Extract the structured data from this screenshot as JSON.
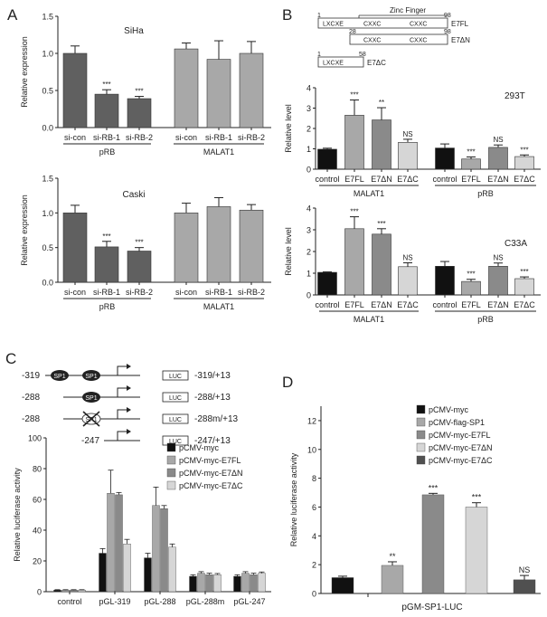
{
  "figure": {
    "colors": {
      "dark": "#606060",
      "light": "#a8a8a8",
      "black": "#111111",
      "mid": "#8a8a8a",
      "lightest": "#d6d6d6",
      "panelD_dark": "#505050"
    }
  },
  "chart_data": [
    {
      "panel": "A",
      "title": "SiHa",
      "type": "bar",
      "ylabel": "Relative expression",
      "ylim": [
        0,
        1.5
      ],
      "yticks": [
        "0.0",
        "0.5",
        "1.0",
        "1.5"
      ],
      "categories": [
        "si-con",
        "si-RB-1",
        "si-RB-2",
        "si-con",
        "si-RB-1",
        "si-RB-2"
      ],
      "values": [
        1.0,
        0.45,
        0.39,
        1.06,
        0.92,
        1.0
      ],
      "errors": [
        0.1,
        0.06,
        0.03,
        0.08,
        0.25,
        0.16
      ],
      "sig": [
        "",
        "***",
        "***",
        "",
        "",
        ""
      ],
      "groups": [
        "pRB",
        "MALAT1"
      ]
    },
    {
      "panel": "A",
      "title": "Caski",
      "type": "bar",
      "ylabel": "Relative expression",
      "ylim": [
        0,
        1.5
      ],
      "yticks": [
        "0.0",
        "0.5",
        "1.0",
        "1.5"
      ],
      "categories": [
        "si-con",
        "si-RB-1",
        "si-RB-2",
        "si-con",
        "si-RB-1",
        "si-RB-2"
      ],
      "values": [
        1.0,
        0.51,
        0.45,
        1.0,
        1.09,
        1.04
      ],
      "errors": [
        0.11,
        0.08,
        0.05,
        0.14,
        0.13,
        0.08
      ],
      "sig": [
        "",
        "***",
        "***",
        "",
        "",
        ""
      ],
      "groups": [
        "pRB",
        "MALAT1"
      ]
    },
    {
      "panel": "B",
      "title": "293T",
      "type": "bar",
      "ylabel": "Relative level",
      "ylim": [
        0,
        4
      ],
      "yticks": [
        "0",
        "1",
        "2",
        "3",
        "4"
      ],
      "categories": [
        "control",
        "E7FL",
        "E7ΔN",
        "E7ΔC",
        "control",
        "E7FL",
        "E7ΔN",
        "E7ΔC"
      ],
      "values": [
        0.98,
        2.65,
        2.42,
        1.32,
        1.04,
        0.5,
        1.07,
        0.62
      ],
      "errors": [
        0.05,
        0.75,
        0.6,
        0.15,
        0.2,
        0.1,
        0.12,
        0.08
      ],
      "sig": [
        "",
        "***",
        "**",
        "NS",
        "",
        "***",
        "NS",
        "***"
      ],
      "groups": [
        "MALAT1",
        "pRB"
      ]
    },
    {
      "panel": "B",
      "title": "C33A",
      "type": "bar",
      "ylabel": "Relative level",
      "ylim": [
        0,
        4
      ],
      "yticks": [
        "0",
        "1",
        "2",
        "3",
        "4"
      ],
      "categories": [
        "control",
        "E7FL",
        "E7ΔN",
        "E7ΔC",
        "control",
        "E7FL",
        "E7ΔN",
        "E7ΔC"
      ],
      "values": [
        1.04,
        3.05,
        2.8,
        1.3,
        1.32,
        0.62,
        1.32,
        0.75
      ],
      "errors": [
        0.02,
        0.55,
        0.25,
        0.18,
        0.22,
        0.1,
        0.15,
        0.08
      ],
      "sig": [
        "",
        "***",
        "***",
        "NS",
        "",
        "***",
        "NS",
        "***"
      ],
      "groups": [
        "MALAT1",
        "pRB"
      ]
    },
    {
      "panel": "C",
      "type": "bar",
      "ylabel": "Relative luciferase activity",
      "ylim": [
        0,
        100
      ],
      "yticks": [
        "0",
        "20",
        "40",
        "60",
        "80",
        "100"
      ],
      "categories": [
        "control",
        "pGL-319",
        "pGL-288",
        "pGL-288m",
        "pGL-247"
      ],
      "series": [
        {
          "name": "pCMV-myc",
          "values": [
            1,
            25,
            22,
            10,
            10
          ],
          "errors": [
            0.3,
            3,
            3,
            1,
            1
          ]
        },
        {
          "name": "pCMV-myc-E7FL",
          "values": [
            1,
            64,
            56,
            12,
            12
          ],
          "errors": [
            0.3,
            15,
            12,
            1,
            1
          ]
        },
        {
          "name": "pCMV-myc-E7ΔN",
          "values": [
            1,
            63,
            54,
            11,
            11
          ],
          "errors": [
            0.3,
            1.5,
            2,
            1,
            1
          ]
        },
        {
          "name": "pCMV-myc-E7ΔC",
          "values": [
            1,
            31,
            29,
            11,
            12
          ],
          "errors": [
            0.3,
            3,
            2,
            0.8,
            0.8
          ]
        }
      ]
    },
    {
      "panel": "D",
      "type": "bar",
      "ylabel": "Relative luciferase activity",
      "ylim": [
        0,
        13
      ],
      "yticks": [
        "0",
        "2",
        "4",
        "6",
        "8",
        "10",
        "12"
      ],
      "xlabel": "pGM-SP1-LUC",
      "series": [
        {
          "name": "pCMV-myc",
          "value": 1.1,
          "error": 0.1,
          "sig": ""
        },
        {
          "name": "pCMV-flag-SP1",
          "value": 1.95,
          "error": 0.25,
          "sig": "**"
        },
        {
          "name": "pCMV-myc-E7FL",
          "value": 6.85,
          "error": 0.1,
          "sig": "***"
        },
        {
          "name": "pCMV-myc-E7ΔN",
          "value": 6.0,
          "error": 0.3,
          "sig": "***"
        },
        {
          "name": "pCMV-myc-E7ΔC",
          "value": 0.95,
          "error": 0.3,
          "sig": "NS"
        }
      ]
    }
  ],
  "panel_labels": {
    "a": "A",
    "b": "B",
    "c": "C",
    "d": "D"
  },
  "diagram_b": {
    "zinc_finger": "Zinc  Finger",
    "fl_start": "1",
    "fl_end": "98",
    "fl_name": "E7FL",
    "fl_box1": "LXCXE",
    "fl_box2": "CXXC",
    "fl_box3": "CXXC",
    "dn_start": "28",
    "dn_end": "98",
    "dn_name": "E7ΔN",
    "dn_box1": "CXXC",
    "dn_box2": "CXXC",
    "dc_start": "1",
    "dc_end": "58",
    "dc_name": "E7ΔC",
    "dc_box1": "LXCXE"
  },
  "diagram_c": {
    "rows": [
      {
        "start": "-319",
        "sites": [
          "SP1",
          "SP1"
        ],
        "luc": "LUC",
        "range": "-319/+13"
      },
      {
        "start": "-288",
        "sites": [
          "SP1"
        ],
        "luc": "LUC",
        "range": "-288/+13"
      },
      {
        "start": "-288",
        "sites": [
          "SP1"
        ],
        "luc": "LUC",
        "range": "-288m/+13"
      },
      {
        "start": "-247",
        "sites": [],
        "luc": "LUC",
        "range": "-247/+13"
      }
    ]
  }
}
